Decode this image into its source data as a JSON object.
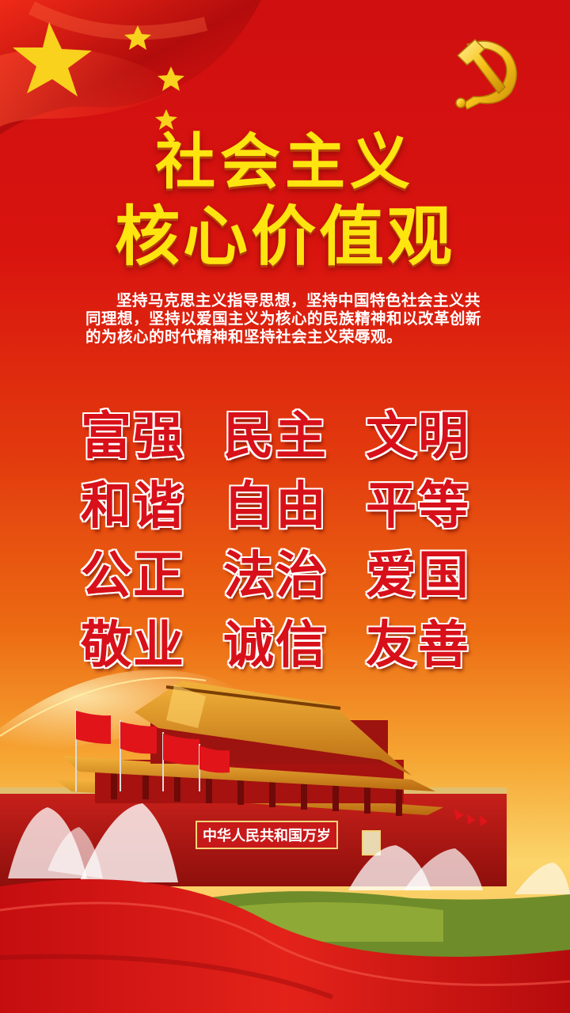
{
  "title_line1": "社会主义",
  "title_line2": "核心价值观",
  "intro": "坚持马克思主义指导思想，坚持中国特色社会主义共同理想，坚持以爱国主义为核心的民族精神和以改革创新的为核心的时代精神和坚持社会主义荣辱观。",
  "values": [
    "富强",
    "民主",
    "文明",
    "和谐",
    "自由",
    "平等",
    "公正",
    "法治",
    "爱国",
    "敬业",
    "诚信",
    "友善"
  ],
  "gate_banner": "中华人民共和国万岁",
  "colors": {
    "background_red": "#d9140f",
    "background_gold": "#fbd46a",
    "title_yellow": "#ffe510",
    "value_red": "#d8101a",
    "emblem_gold": "#f7c21a"
  },
  "icons": [
    "party-emblem-icon",
    "national-flag-stars",
    "tiananmen-gate",
    "red-flag-icon",
    "fountain"
  ]
}
